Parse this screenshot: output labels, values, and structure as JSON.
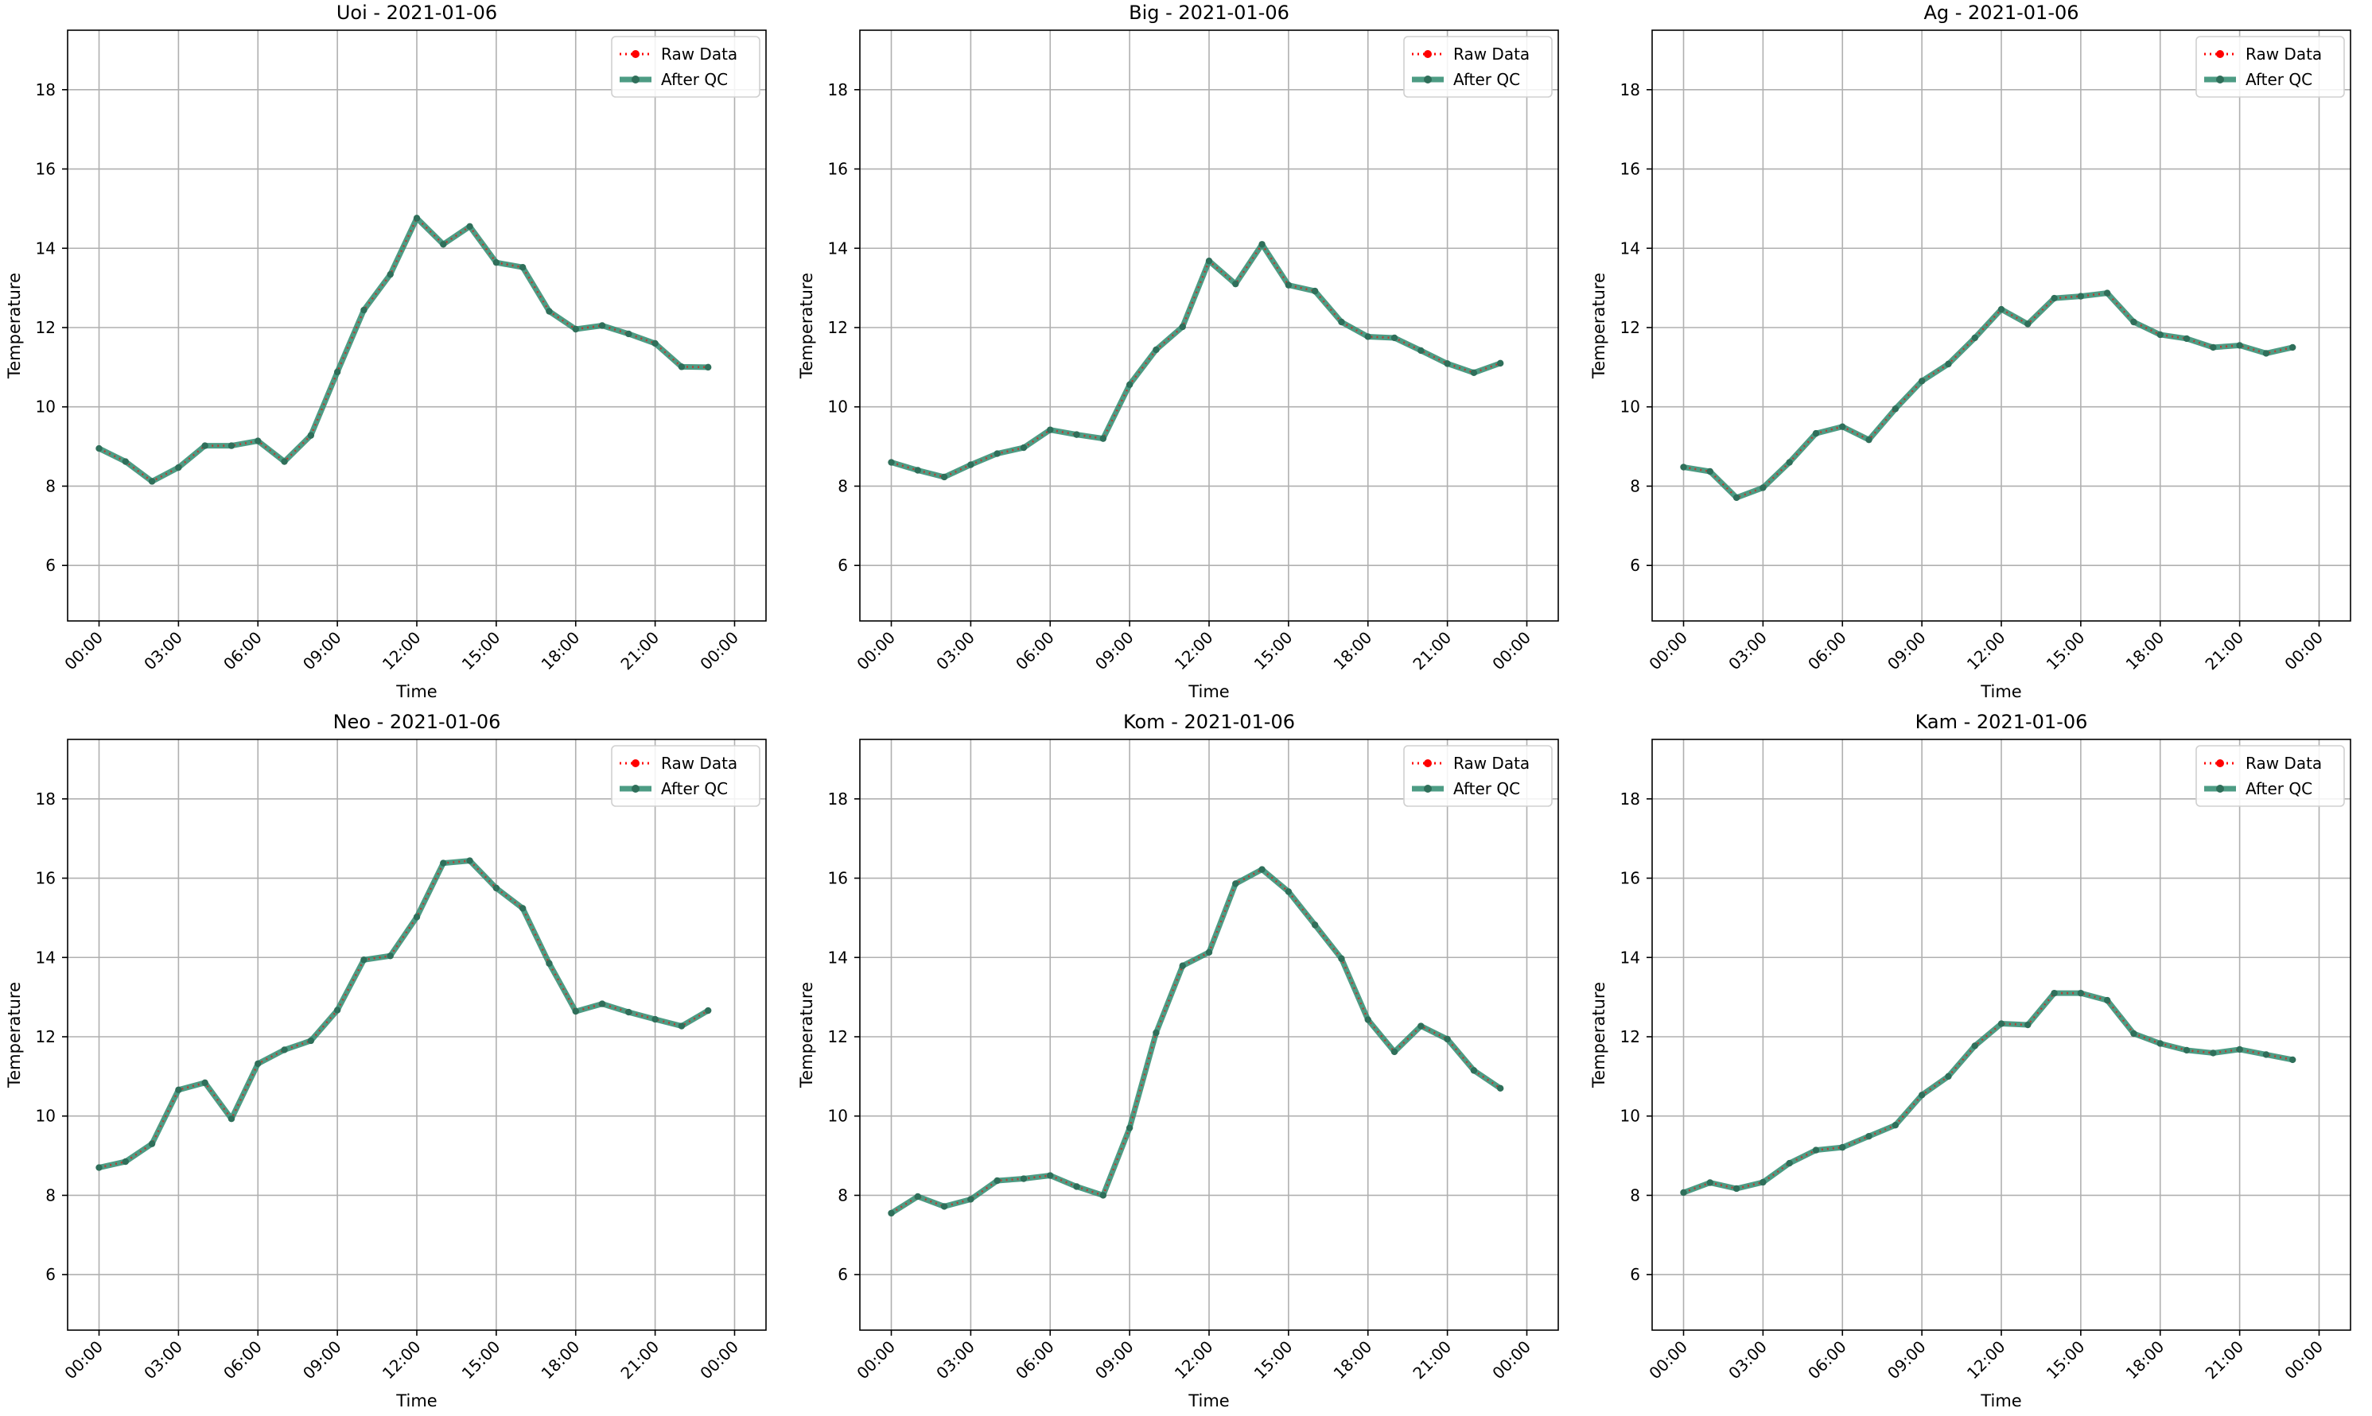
{
  "figure": {
    "colors": {
      "raw": "#ff0000",
      "qc": "#2e8b6e",
      "qc_point": "#2f6f5a",
      "grid": "#b0b0b0"
    },
    "legend": {
      "raw_label": "Raw Data",
      "qc_label": "After QC",
      "placement": "upper right"
    }
  },
  "chart_data": [
    {
      "type": "line",
      "title": "Uoi - 2021-01-06",
      "xlabel": "Time",
      "ylabel": "Temperature",
      "ylim": [
        4.6,
        19.5
      ],
      "yticks": [
        6,
        8,
        10,
        12,
        14,
        16,
        18
      ],
      "xticks": [
        "00:00",
        "03:00",
        "06:00",
        "09:00",
        "12:00",
        "15:00",
        "18:00",
        "21:00",
        "00:00"
      ],
      "x_hours": [
        0,
        1,
        2,
        3,
        4,
        5,
        6,
        7,
        8,
        9,
        10,
        11,
        12,
        13,
        14,
        15,
        16,
        17,
        18,
        19,
        20,
        21,
        22,
        23
      ],
      "grid": true,
      "series": [
        {
          "name": "Raw Data",
          "values": [
            8.95,
            8.62,
            8.12,
            8.47,
            9.02,
            9.02,
            9.14,
            8.62,
            9.28,
            10.88,
            12.44,
            13.34,
            14.76,
            14.1,
            14.55,
            13.64,
            13.52,
            12.41,
            11.96,
            12.05,
            11.84,
            11.6,
            11.01,
            11.0
          ]
        },
        {
          "name": "After QC",
          "values": [
            8.95,
            8.62,
            8.12,
            8.47,
            9.02,
            9.02,
            9.14,
            8.62,
            9.28,
            10.88,
            12.44,
            13.34,
            14.76,
            14.1,
            14.55,
            13.64,
            13.52,
            12.41,
            11.96,
            12.05,
            11.84,
            11.6,
            11.01,
            11.0
          ]
        }
      ]
    },
    {
      "type": "line",
      "title": "Big - 2021-01-06",
      "xlabel": "Time",
      "ylabel": "Temperature",
      "ylim": [
        4.6,
        19.5
      ],
      "yticks": [
        6,
        8,
        10,
        12,
        14,
        16,
        18
      ],
      "xticks": [
        "00:00",
        "03:00",
        "06:00",
        "09:00",
        "12:00",
        "15:00",
        "18:00",
        "21:00",
        "00:00"
      ],
      "x_hours": [
        0,
        1,
        2,
        3,
        4,
        5,
        6,
        7,
        8,
        9,
        10,
        11,
        12,
        13,
        14,
        15,
        16,
        17,
        18,
        19,
        20,
        21,
        22,
        23
      ],
      "grid": true,
      "series": [
        {
          "name": "Raw Data",
          "values": [
            8.6,
            8.4,
            8.23,
            8.54,
            8.82,
            8.97,
            9.42,
            9.3,
            9.2,
            10.56,
            11.44,
            12.02,
            13.68,
            13.1,
            14.1,
            13.07,
            12.92,
            12.14,
            11.77,
            11.74,
            11.42,
            11.09,
            10.86,
            11.1
          ]
        },
        {
          "name": "After QC",
          "values": [
            8.6,
            8.4,
            8.23,
            8.54,
            8.82,
            8.97,
            9.42,
            9.3,
            9.2,
            10.56,
            11.44,
            12.02,
            13.68,
            13.1,
            14.1,
            13.07,
            12.92,
            12.14,
            11.77,
            11.74,
            11.42,
            11.09,
            10.86,
            11.1
          ]
        }
      ]
    },
    {
      "type": "line",
      "title": "Ag - 2021-01-06",
      "xlabel": "Time",
      "ylabel": "Temperature",
      "ylim": [
        4.6,
        19.5
      ],
      "yticks": [
        6,
        8,
        10,
        12,
        14,
        16,
        18
      ],
      "xticks": [
        "00:00",
        "03:00",
        "06:00",
        "09:00",
        "12:00",
        "15:00",
        "18:00",
        "21:00",
        "00:00"
      ],
      "x_hours": [
        0,
        1,
        2,
        3,
        4,
        5,
        6,
        7,
        8,
        9,
        10,
        11,
        12,
        13,
        14,
        15,
        16,
        17,
        18,
        19,
        20,
        21,
        22,
        23
      ],
      "grid": true,
      "series": [
        {
          "name": "Raw Data",
          "values": [
            8.48,
            8.37,
            7.71,
            7.96,
            8.6,
            9.33,
            9.5,
            9.17,
            9.95,
            10.65,
            11.08,
            11.74,
            12.46,
            12.09,
            12.74,
            12.79,
            12.87,
            12.14,
            11.82,
            11.72,
            11.5,
            11.55,
            11.35,
            11.5
          ]
        },
        {
          "name": "After QC",
          "values": [
            8.48,
            8.37,
            7.71,
            7.96,
            8.6,
            9.33,
            9.5,
            9.17,
            9.95,
            10.65,
            11.08,
            11.74,
            12.46,
            12.09,
            12.74,
            12.79,
            12.87,
            12.14,
            11.82,
            11.72,
            11.5,
            11.55,
            11.35,
            11.5
          ]
        }
      ]
    },
    {
      "type": "line",
      "title": "Neo - 2021-01-06",
      "xlabel": "Time",
      "ylabel": "Temperature",
      "ylim": [
        4.6,
        19.5
      ],
      "yticks": [
        6,
        8,
        10,
        12,
        14,
        16,
        18
      ],
      "xticks": [
        "00:00",
        "03:00",
        "06:00",
        "09:00",
        "12:00",
        "15:00",
        "18:00",
        "21:00",
        "00:00"
      ],
      "x_hours": [
        0,
        1,
        2,
        3,
        4,
        5,
        6,
        7,
        8,
        9,
        10,
        11,
        12,
        13,
        14,
        15,
        16,
        17,
        18,
        19,
        20,
        21,
        22,
        23
      ],
      "grid": true,
      "series": [
        {
          "name": "Raw Data",
          "values": [
            8.7,
            8.85,
            9.3,
            10.66,
            10.84,
            9.93,
            11.32,
            11.67,
            11.9,
            12.67,
            13.94,
            14.04,
            15.02,
            16.38,
            16.44,
            15.75,
            15.24,
            13.85,
            12.64,
            12.83,
            12.62,
            12.44,
            12.27,
            12.66
          ]
        },
        {
          "name": "After QC",
          "values": [
            8.7,
            8.85,
            9.3,
            10.66,
            10.84,
            9.93,
            11.32,
            11.67,
            11.9,
            12.67,
            13.94,
            14.04,
            15.02,
            16.38,
            16.44,
            15.75,
            15.24,
            13.85,
            12.64,
            12.83,
            12.62,
            12.44,
            12.27,
            12.66
          ]
        }
      ]
    },
    {
      "type": "line",
      "title": "Kom - 2021-01-06",
      "xlabel": "Time",
      "ylabel": "Temperature",
      "ylim": [
        4.6,
        19.5
      ],
      "yticks": [
        6,
        8,
        10,
        12,
        14,
        16,
        18
      ],
      "xticks": [
        "00:00",
        "03:00",
        "06:00",
        "09:00",
        "12:00",
        "15:00",
        "18:00",
        "21:00",
        "00:00"
      ],
      "x_hours": [
        0,
        1,
        2,
        3,
        4,
        5,
        6,
        7,
        8,
        9,
        10,
        11,
        12,
        13,
        14,
        15,
        16,
        17,
        18,
        19,
        20,
        21,
        22,
        23
      ],
      "grid": true,
      "series": [
        {
          "name": "Raw Data",
          "values": [
            7.55,
            7.97,
            7.72,
            7.9,
            8.37,
            8.42,
            8.5,
            8.22,
            8.0,
            9.7,
            12.1,
            13.79,
            14.13,
            15.86,
            16.22,
            15.66,
            14.82,
            13.97,
            12.43,
            11.62,
            12.27,
            11.94,
            11.15,
            10.7
          ]
        },
        {
          "name": "After QC",
          "values": [
            7.55,
            7.97,
            7.72,
            7.9,
            8.37,
            8.42,
            8.5,
            8.22,
            8.0,
            9.7,
            12.1,
            13.79,
            14.13,
            15.86,
            16.22,
            15.66,
            14.82,
            13.97,
            12.43,
            11.62,
            12.27,
            11.94,
            11.15,
            10.7
          ]
        }
      ]
    },
    {
      "type": "line",
      "title": "Kam - 2021-01-06",
      "xlabel": "Time",
      "ylabel": "Temperature",
      "ylim": [
        4.6,
        19.5
      ],
      "yticks": [
        6,
        8,
        10,
        12,
        14,
        16,
        18
      ],
      "xticks": [
        "00:00",
        "03:00",
        "06:00",
        "09:00",
        "12:00",
        "15:00",
        "18:00",
        "21:00",
        "00:00"
      ],
      "x_hours": [
        0,
        1,
        2,
        3,
        4,
        5,
        6,
        7,
        8,
        9,
        10,
        11,
        12,
        13,
        14,
        15,
        16,
        17,
        18,
        19,
        20,
        21,
        22,
        23
      ],
      "grid": true,
      "series": [
        {
          "name": "Raw Data",
          "values": [
            8.07,
            8.32,
            8.17,
            8.33,
            8.81,
            9.14,
            9.21,
            9.49,
            9.77,
            10.53,
            11.0,
            11.77,
            12.33,
            12.3,
            13.1,
            13.1,
            12.92,
            12.08,
            11.83,
            11.66,
            11.59,
            11.68,
            11.55,
            11.42
          ]
        },
        {
          "name": "After QC",
          "values": [
            8.07,
            8.32,
            8.17,
            8.33,
            8.81,
            9.14,
            9.21,
            9.49,
            9.77,
            10.53,
            11.0,
            11.77,
            12.33,
            12.3,
            13.1,
            13.1,
            12.92,
            12.08,
            11.83,
            11.66,
            11.59,
            11.68,
            11.55,
            11.42
          ]
        }
      ]
    }
  ]
}
